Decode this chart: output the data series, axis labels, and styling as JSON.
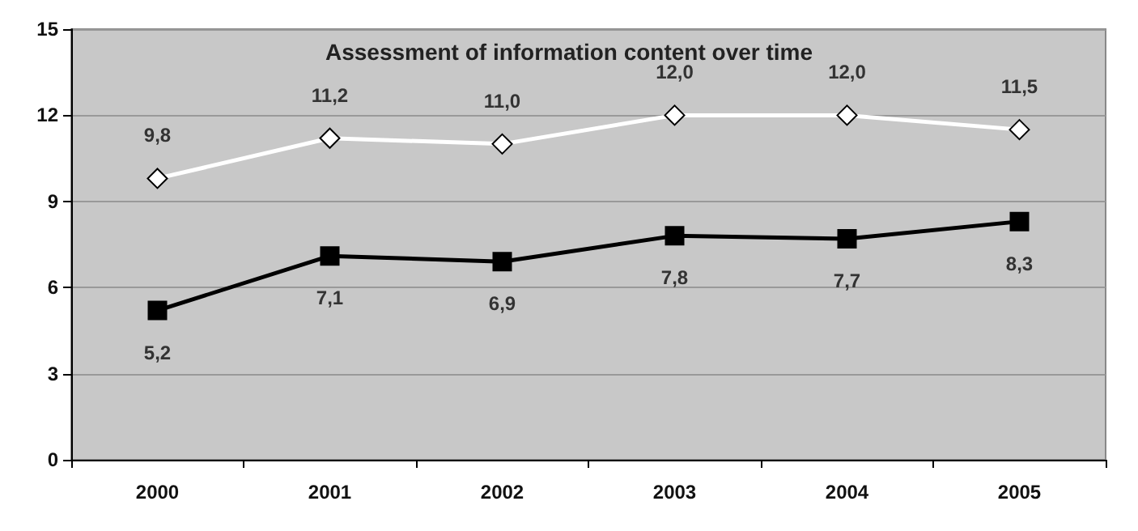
{
  "chart_data": {
    "type": "line",
    "title": "Assessment of information content over time",
    "categories": [
      "2000",
      "2001",
      "2002",
      "2003",
      "2004",
      "2005"
    ],
    "series": [
      {
        "color": "#ffffff",
        "marker": "diamond",
        "values": [
          9.8,
          11.2,
          11.0,
          12.0,
          12.0,
          11.5
        ],
        "value_labels": [
          "9,8",
          "11,2",
          "11,0",
          "12,0",
          "12,0",
          "11,5"
        ]
      },
      {
        "color": "#000000",
        "marker": "square",
        "values": [
          5.2,
          7.1,
          6.9,
          7.8,
          7.7,
          8.3
        ],
        "value_labels": [
          "5,2",
          "7,1",
          "6,9",
          "7,8",
          "7,7",
          "8,3"
        ]
      }
    ],
    "ylim": [
      0,
      15
    ],
    "yticks": [
      0,
      3,
      6,
      9,
      12,
      15
    ],
    "grid": "y",
    "legend": false,
    "line_style": "solid"
  }
}
